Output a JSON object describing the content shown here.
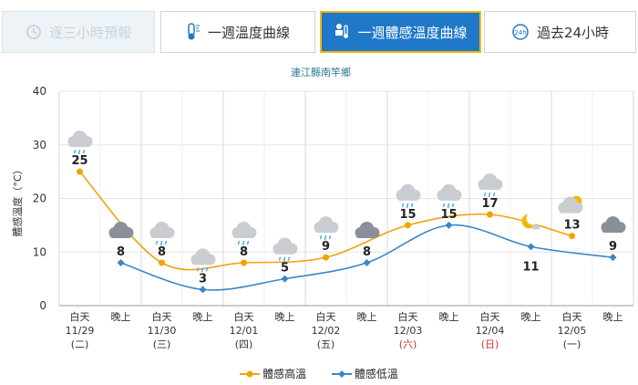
{
  "tabs": [
    {
      "label": "逐三小時預報",
      "icon": "clock-icon",
      "state": "faded"
    },
    {
      "label": "一週溫度曲線",
      "icon": "thermometer-icon",
      "state": "normal"
    },
    {
      "label": "一週體感溫度曲線",
      "icon": "feels-like-icon",
      "state": "active"
    },
    {
      "label": "過去24小時",
      "icon": "24h-icon",
      "state": "normal"
    }
  ],
  "chart_data": {
    "type": "line",
    "title": "連江縣南竿鄉",
    "ylabel": "體感溫度（°C）",
    "ylim": [
      0,
      40
    ],
    "yticks": [
      0,
      10,
      20,
      30,
      40
    ],
    "grid": true,
    "legend_position": "bottom",
    "categories": [
      {
        "period": "白天",
        "date": "11/29",
        "weekday": "(二)"
      },
      {
        "period": "晚上"
      },
      {
        "period": "白天",
        "date": "11/30",
        "weekday": "(三)"
      },
      {
        "period": "晚上"
      },
      {
        "period": "白天",
        "date": "12/01",
        "weekday": "(四)"
      },
      {
        "period": "晚上"
      },
      {
        "period": "白天",
        "date": "12/02",
        "weekday": "(五)"
      },
      {
        "period": "晚上"
      },
      {
        "period": "白天",
        "date": "12/03",
        "weekday": "(六)",
        "weekend": true
      },
      {
        "period": "晚上"
      },
      {
        "period": "白天",
        "date": "12/04",
        "weekday": "(日)",
        "weekend": true
      },
      {
        "period": "晚上"
      },
      {
        "period": "白天",
        "date": "12/05",
        "weekday": "(一)"
      },
      {
        "period": "晚上"
      }
    ],
    "series": [
      {
        "name": "體感高溫",
        "color": "#f0a30a",
        "values": [
          25,
          null,
          8,
          null,
          8,
          null,
          9,
          null,
          15,
          null,
          17,
          null,
          13,
          null
        ]
      },
      {
        "name": "體感低溫",
        "color": "#3a87c8",
        "values": [
          null,
          8,
          null,
          3,
          null,
          5,
          null,
          8,
          null,
          15,
          null,
          11,
          null,
          9
        ]
      }
    ],
    "labels": [
      25,
      8,
      8,
      3,
      8,
      5,
      9,
      8,
      15,
      15,
      17,
      11,
      13,
      9
    ],
    "weather_icons": [
      "cloud-rain-icon",
      "cloud-icon",
      "cloud-rain-icon",
      "cloud-rain-icon",
      "cloud-rain-icon",
      "cloud-rain-icon",
      "cloud-rain-icon",
      "cloud-icon",
      "cloud-rain-icon",
      "cloud-rain-icon",
      "cloud-rain-icon",
      "moon-cloud-icon",
      "sun-cloud-icon",
      "cloud-icon"
    ],
    "weekend_color": "#c0392b"
  }
}
